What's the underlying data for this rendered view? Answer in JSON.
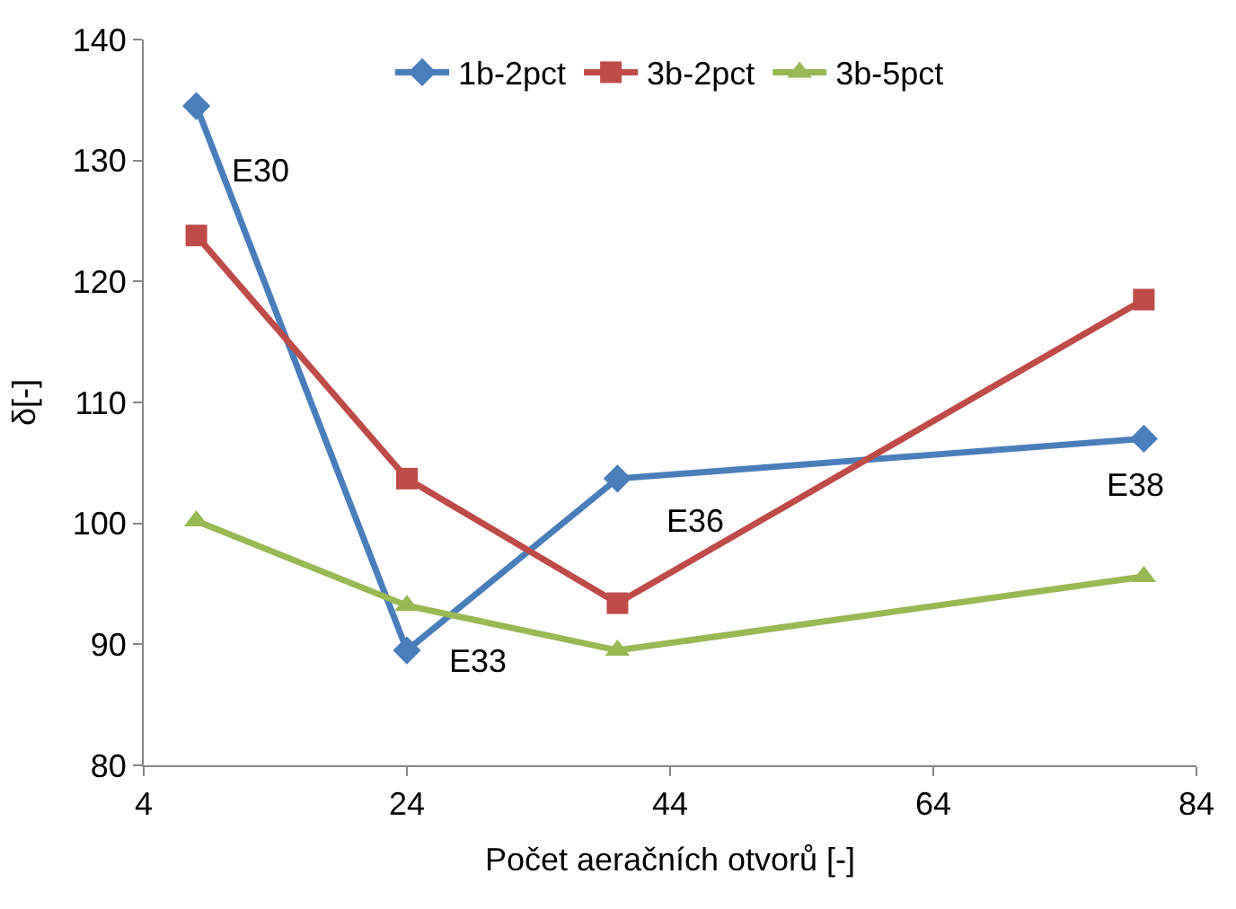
{
  "chart_data": {
    "type": "line",
    "xlabel": "Počet aeračních otvorů [-]",
    "ylabel": "δ[-]",
    "x": [
      8,
      24,
      40,
      80
    ],
    "series": [
      {
        "name": "1b-2pct",
        "color": "#4a7ebb",
        "values": [
          134.5,
          89.5,
          103.7,
          107
        ],
        "marker": "diamond"
      },
      {
        "name": "3b-2pct",
        "color": "#be4b48",
        "values": [
          123.8,
          103.7,
          93.4,
          118.5
        ],
        "marker": "square"
      },
      {
        "name": "3b-5pct",
        "color": "#98b954",
        "values": [
          100.2,
          93.2,
          89.5,
          95.6
        ],
        "marker": "triangle"
      }
    ],
    "xlim": [
      4,
      84
    ],
    "xticks": [
      4,
      24,
      44,
      64,
      84
    ],
    "ylim": [
      80,
      140
    ],
    "yticks": [
      80,
      90,
      100,
      110,
      120,
      130,
      140
    ],
    "grid": false,
    "legend": "top",
    "annotations": [
      {
        "text": "E30",
        "x": 8,
        "y": 134.5
      },
      {
        "text": "E33",
        "x": 24,
        "y": 89.5
      },
      {
        "text": "E36",
        "x": 40,
        "y": 103.7
      },
      {
        "text": "E38",
        "x": 80,
        "y": 107
      }
    ]
  }
}
